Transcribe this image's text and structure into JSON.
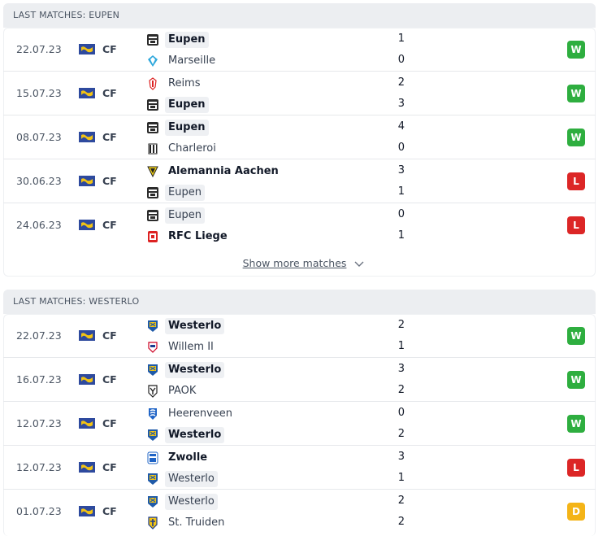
{
  "sections": [
    {
      "title": "LAST MATCHES: EUPEN",
      "matches": [
        {
          "date": "22.07.23",
          "competition": "CF",
          "home": {
            "name": "Eupen",
            "score": "1",
            "crest": "eupen"
          },
          "away": {
            "name": "Marseille",
            "score": "0",
            "crest": "marseille"
          },
          "result": "W"
        },
        {
          "date": "15.07.23",
          "competition": "CF",
          "home": {
            "name": "Reims",
            "score": "2",
            "crest": "reims"
          },
          "away": {
            "name": "Eupen",
            "score": "3",
            "crest": "eupen"
          },
          "result": "W"
        },
        {
          "date": "08.07.23",
          "competition": "CF",
          "home": {
            "name": "Eupen",
            "score": "4",
            "crest": "eupen"
          },
          "away": {
            "name": "Charleroi",
            "score": "0",
            "crest": "charleroi"
          },
          "result": "W"
        },
        {
          "date": "30.06.23",
          "competition": "CF",
          "home": {
            "name": "Alemannia Aachen",
            "score": "3",
            "crest": "aachen"
          },
          "away": {
            "name": "Eupen",
            "score": "1",
            "crest": "eupen"
          },
          "result": "L"
        },
        {
          "date": "24.06.23",
          "competition": "CF",
          "home": {
            "name": "Eupen",
            "score": "0",
            "crest": "eupen"
          },
          "away": {
            "name": "RFC Liege",
            "score": "1",
            "crest": "liege"
          },
          "result": "L"
        }
      ]
    },
    {
      "title": "LAST MATCHES: WESTERLO",
      "matches": [
        {
          "date": "22.07.23",
          "competition": "CF",
          "home": {
            "name": "Westerlo",
            "score": "2",
            "crest": "westerlo"
          },
          "away": {
            "name": "Willem II",
            "score": "1",
            "crest": "willem"
          },
          "result": "W"
        },
        {
          "date": "16.07.23",
          "competition": "CF",
          "home": {
            "name": "Westerlo",
            "score": "3",
            "crest": "westerlo"
          },
          "away": {
            "name": "PAOK",
            "score": "2",
            "crest": "paok"
          },
          "result": "W"
        },
        {
          "date": "12.07.23",
          "competition": "CF",
          "home": {
            "name": "Heerenveen",
            "score": "0",
            "crest": "heerenveen"
          },
          "away": {
            "name": "Westerlo",
            "score": "2",
            "crest": "westerlo"
          },
          "result": "W"
        },
        {
          "date": "12.07.23",
          "competition": "CF",
          "home": {
            "name": "Zwolle",
            "score": "3",
            "crest": "zwolle"
          },
          "away": {
            "name": "Westerlo",
            "score": "1",
            "crest": "westerlo"
          },
          "result": "L"
        },
        {
          "date": "01.07.23",
          "competition": "CF",
          "home": {
            "name": "Westerlo",
            "score": "2",
            "crest": "westerlo"
          },
          "away": {
            "name": "St. Truiden",
            "score": "2",
            "crest": "sttruiden"
          },
          "result": "D"
        }
      ]
    }
  ],
  "show_more_label": "Show more matches",
  "colors": {
    "win": "#2eae3f",
    "loss": "#dc2626",
    "draw": "#f4b417",
    "header_bg": "#eceef1"
  }
}
